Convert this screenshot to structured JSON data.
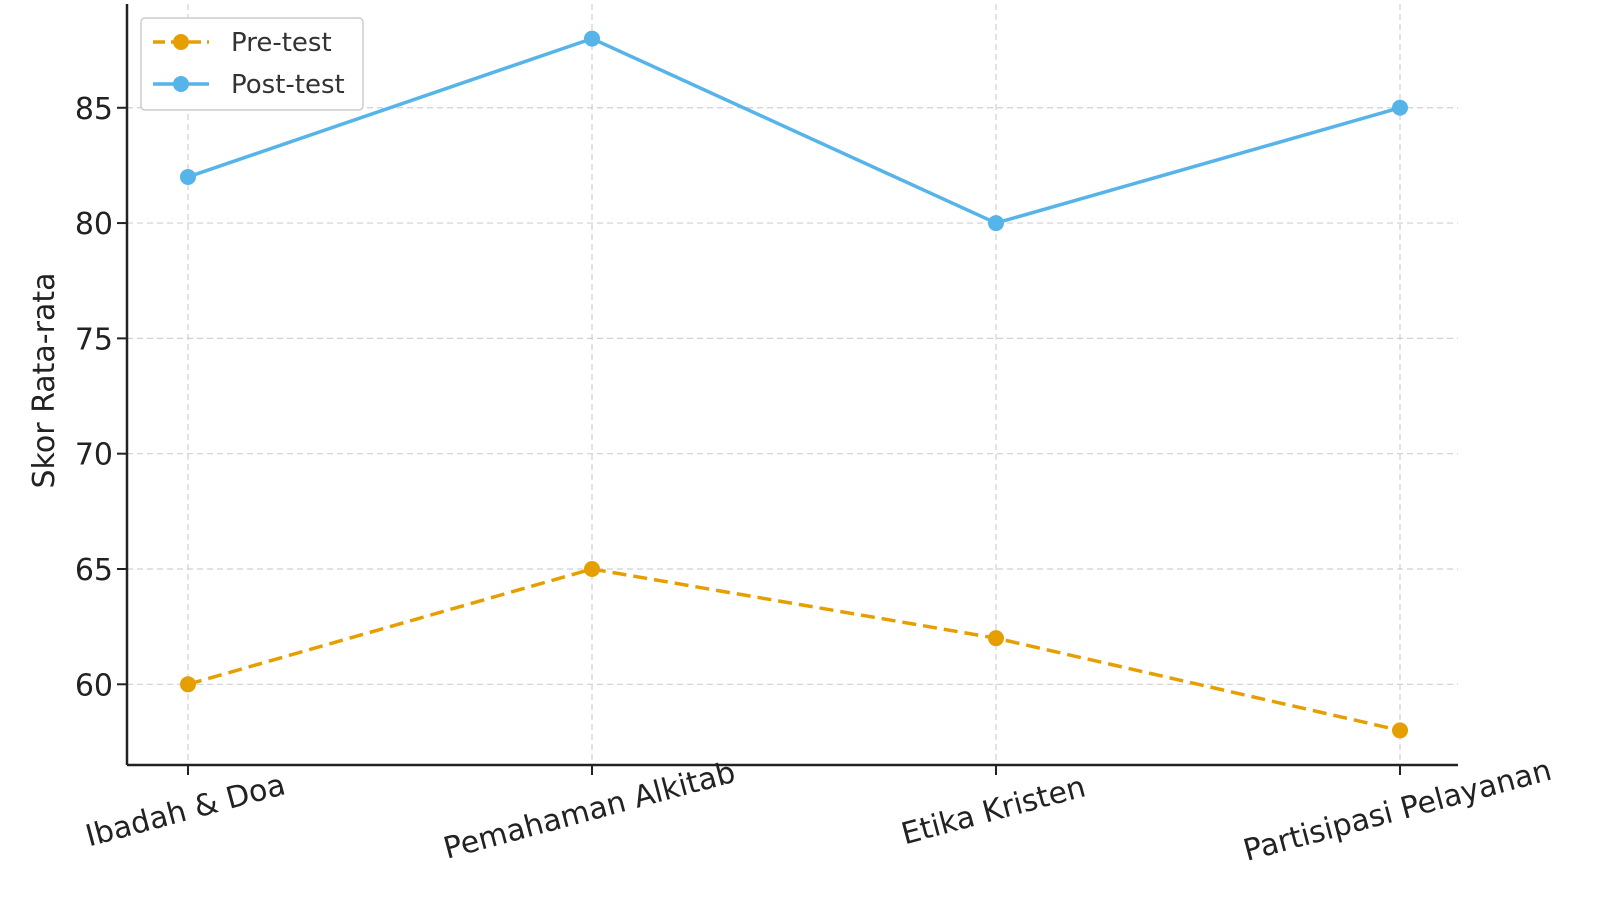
{
  "chart_data": {
    "type": "line",
    "categories": [
      "Ibadah & Doa",
      "Pemahaman Alkitab",
      "Etika Kristen",
      "Partisipasi Pelayanan"
    ],
    "series": [
      {
        "name": "Pre-test",
        "values": [
          60,
          65,
          62,
          58
        ],
        "color": "#E69F00",
        "style": "dashed"
      },
      {
        "name": "Post-test",
        "values": [
          82,
          88,
          80,
          85
        ],
        "color": "#56B4E9",
        "style": "solid"
      }
    ],
    "ylabel": "Skor Rata-rata",
    "xlabel": "",
    "ylim": [
      56.5,
      89.5
    ],
    "yticks": [
      60,
      65,
      70,
      75,
      80,
      85
    ],
    "grid": true,
    "legend": "top-left",
    "xtick_rotation": -15
  }
}
